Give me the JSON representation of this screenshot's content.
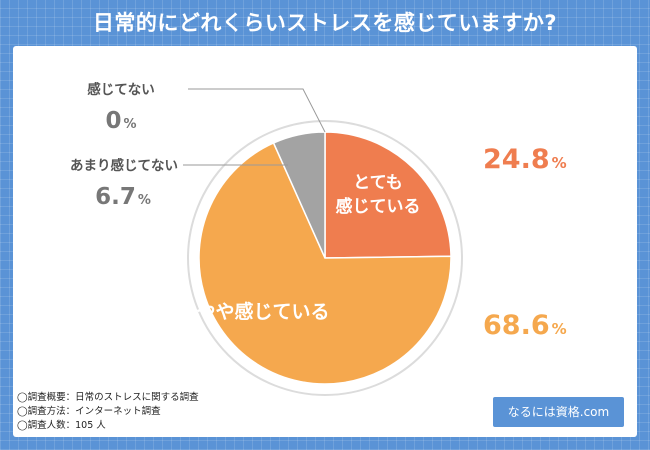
{
  "title": "日常的にどれくらいストレスを感じていますか?",
  "chart_data": {
    "type": "pie",
    "slices": [
      {
        "label": "とても感じている",
        "label_lines": [
          "とても",
          "感じている"
        ],
        "value": 24.8,
        "value_text": "24.8",
        "color": "#ef7d4f"
      },
      {
        "label": "やや感じている",
        "label_lines": [
          "やや感じている"
        ],
        "value": 68.6,
        "value_text": "68.6",
        "color": "#f5a84e"
      },
      {
        "label": "あまり感じてない",
        "label_lines": [
          "あまり感じてない"
        ],
        "value": 6.7,
        "value_text": "6.7",
        "color": "#a3a3a3"
      },
      {
        "label": "感じてない",
        "label_lines": [
          "感じてない"
        ],
        "value": 0,
        "value_text": "0",
        "color": "#7a7a7a"
      }
    ],
    "percent_sign": "%",
    "start_angle_deg": 0,
    "direction": "clockwise"
  },
  "notes": [
    "◯調査概要：日常のストレスに関する調査",
    "◯調査方法：インターネット調査",
    "◯調査人数：105 人"
  ],
  "brand": "なるには資格.com"
}
